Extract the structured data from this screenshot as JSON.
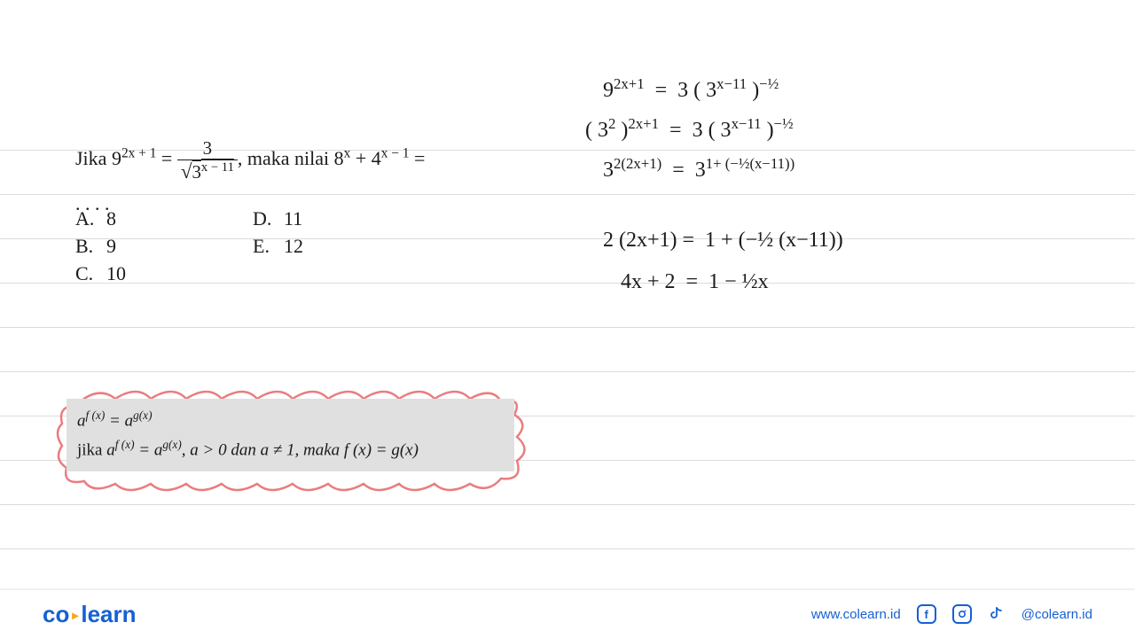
{
  "question": {
    "prefix": "Jika 9",
    "exp1": "2x + 1",
    "equals": " = ",
    "frac_num": "3",
    "sqrt_inner": "3",
    "sqrt_exp": "x − 11",
    "suffix": ", maka nilai 8",
    "exp2": "x",
    "plus": " + 4",
    "exp3": "x − 1",
    "tail": " ="
  },
  "dots": ". . . .",
  "choices": {
    "A": "8",
    "B": "9",
    "C": "10",
    "D": "11",
    "E": "12"
  },
  "formula": {
    "line1_lhs": "a",
    "line1_exp1": "f (x)",
    "line1_eq": " = a",
    "line1_exp2": "g(x)",
    "line2_prefix": "jika ",
    "line2_a1": "a",
    "line2_e1": "f (x)",
    "line2_mid": " = a",
    "line2_e2": "g(x)",
    "line2_cond": ", a > 0 dan a ≠ 1, maka  f (x) = g(x)"
  },
  "handwriting": {
    "l1": "9<sup>2x+1</sup> &nbsp;=&nbsp; 3 ( 3<sup>x−11</sup> )<sup>−½</sup>",
    "l2": "( 3<sup>2</sup> )<sup>2x+1</sup> &nbsp;=&nbsp; 3 ( 3<sup>x−11</sup> )<sup>−½</sup>",
    "l3": "3<sup>2(2x+1)</sup> &nbsp;=&nbsp; 3<sup>1+ (−½(x−11))</sup>",
    "l4": "2 (2x+1) = &nbsp;1 + (−½ (x−11))",
    "l5": "4x + 2 &nbsp;=&nbsp; 1 − ½x"
  },
  "footer": {
    "logo_co": "co",
    "logo_learn": "learn",
    "url": "www.colearn.id",
    "handle": "@colearn.id"
  },
  "colors": {
    "brand_blue": "#1560d4",
    "brand_orange": "#f7a61b",
    "cloud": "#e97d80",
    "text": "#1a1a1a",
    "formula_bg": "#e0e0e0",
    "line": "#b8b8b8"
  }
}
